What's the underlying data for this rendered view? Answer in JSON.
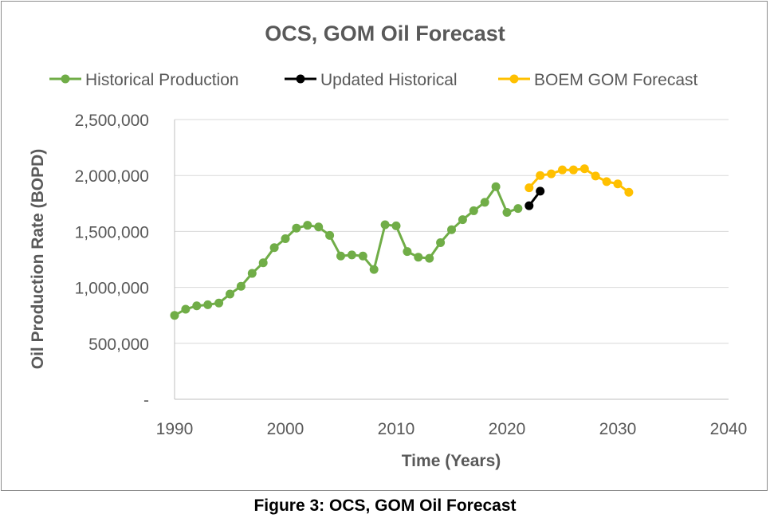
{
  "caption": "Figure 3: OCS, GOM Oil  Forecast",
  "chart_data": {
    "type": "line",
    "title": "OCS, GOM Oil Forecast",
    "xlabel": "Time (Years)",
    "ylabel": "Oil Production Rate (BOPD)",
    "xlim": [
      1990,
      2040
    ],
    "ylim": [
      0,
      2500000
    ],
    "x_ticks": [
      "1990",
      "2000",
      "2010",
      "2020",
      "2030",
      "2040"
    ],
    "y_ticks": [
      "-",
      "500,000",
      "1,000,000",
      "1,500,000",
      "2,000,000",
      "2,500,000"
    ],
    "grid": true,
    "legend_position": "top",
    "series": [
      {
        "name": "Historical Production",
        "color": "#70ad47",
        "x": [
          1990,
          1991,
          1992,
          1993,
          1994,
          1995,
          1996,
          1997,
          1998,
          1999,
          2000,
          2001,
          2002,
          2003,
          2004,
          2005,
          2006,
          2007,
          2008,
          2009,
          2010,
          2011,
          2012,
          2013,
          2014,
          2015,
          2016,
          2017,
          2018,
          2019,
          2020,
          2021
        ],
        "y": [
          750000,
          805000,
          835000,
          845000,
          860000,
          940000,
          1010000,
          1125000,
          1220000,
          1355000,
          1435000,
          1530000,
          1555000,
          1540000,
          1465000,
          1280000,
          1290000,
          1280000,
          1160000,
          1560000,
          1550000,
          1320000,
          1270000,
          1260000,
          1400000,
          1515000,
          1605000,
          1685000,
          1760000,
          1900000,
          1670000,
          1705000
        ]
      },
      {
        "name": "Updated Historical",
        "color": "#000000",
        "x": [
          2022,
          2023
        ],
        "y": [
          1730000,
          1860000
        ]
      },
      {
        "name": "BOEM GOM Forecast",
        "color": "#ffc000",
        "x": [
          2022,
          2023,
          2024,
          2025,
          2026,
          2027,
          2028,
          2029,
          2030,
          2031
        ],
        "y": [
          1890000,
          2000000,
          2015000,
          2050000,
          2050000,
          2060000,
          1995000,
          1945000,
          1925000,
          1850000
        ]
      }
    ]
  }
}
